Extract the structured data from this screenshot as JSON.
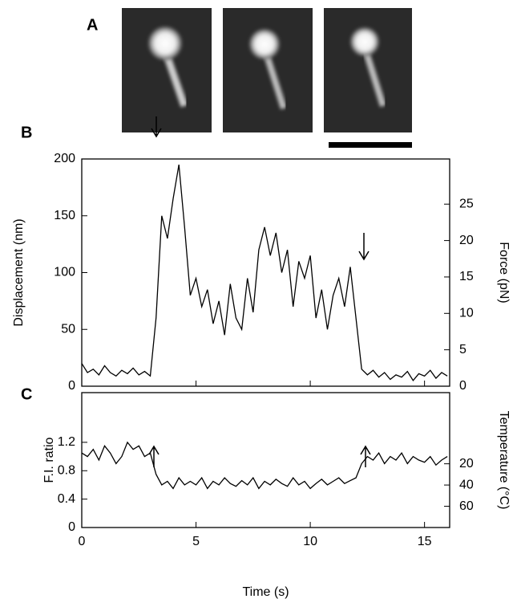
{
  "panel_labels": [
    "A",
    "B",
    "C"
  ],
  "chart_data": [
    {
      "type": "line",
      "ylabel": "Displacement (nm)",
      "y2label": "Force (pN)",
      "x": [
        0,
        0.25,
        0.5,
        0.75,
        1,
        1.25,
        1.5,
        1.75,
        2,
        2.25,
        2.5,
        2.75,
        3,
        3.25,
        3.5,
        3.75,
        4,
        4.25,
        4.5,
        4.75,
        5,
        5.25,
        5.5,
        5.75,
        6,
        6.25,
        6.5,
        6.75,
        7,
        7.25,
        7.5,
        7.75,
        8,
        8.25,
        8.5,
        8.75,
        9,
        9.25,
        9.5,
        9.75,
        10,
        10.25,
        10.5,
        10.75,
        11,
        11.25,
        11.5,
        11.75,
        12,
        12.25,
        12.5,
        12.75,
        13,
        13.25,
        13.5,
        13.75,
        14,
        14.25,
        14.5,
        14.75,
        15,
        15.25,
        15.5,
        15.75,
        16
      ],
      "series": [
        {
          "color": "#000000",
          "values": [
            20,
            12,
            15,
            10,
            18,
            12,
            9,
            14,
            11,
            16,
            10,
            13,
            9,
            60,
            150,
            130,
            165,
            195,
            140,
            80,
            95,
            70,
            85,
            55,
            75,
            45,
            90,
            60,
            50,
            95,
            65,
            120,
            140,
            115,
            135,
            100,
            120,
            70,
            110,
            95,
            115,
            60,
            85,
            50,
            80,
            95,
            70,
            105,
            60,
            15,
            10,
            14,
            8,
            12,
            6,
            10,
            8,
            13,
            5,
            11,
            9,
            14,
            7,
            12,
            9
          ]
        }
      ],
      "xlim": [
        0,
        16.1
      ],
      "xticks": [
        0,
        5,
        10,
        15
      ],
      "ylim": [
        0,
        200
      ],
      "yticks": [
        0,
        50,
        100,
        150,
        200
      ],
      "y2lim": [
        0,
        31.2
      ],
      "y2ticks": [
        0,
        5,
        10,
        15,
        20,
        25
      ]
    },
    {
      "type": "line",
      "ylabel": "F.I. ratio",
      "y2label": "Temperature (°C)",
      "xlabel": "Time (s)",
      "x": [
        0,
        0.25,
        0.5,
        0.75,
        1,
        1.25,
        1.5,
        1.75,
        2,
        2.25,
        2.5,
        2.75,
        3,
        3.25,
        3.5,
        3.75,
        4,
        4.25,
        4.5,
        4.75,
        5,
        5.25,
        5.5,
        5.75,
        6,
        6.25,
        6.5,
        6.75,
        7,
        7.25,
        7.5,
        7.75,
        8,
        8.25,
        8.5,
        8.75,
        9,
        9.25,
        9.5,
        9.75,
        10,
        10.25,
        10.5,
        10.75,
        11,
        11.25,
        11.5,
        11.75,
        12,
        12.25,
        12.5,
        12.75,
        13,
        13.25,
        13.5,
        13.75,
        14,
        14.25,
        14.5,
        14.75,
        15,
        15.25,
        15.5,
        15.75,
        16
      ],
      "series": [
        {
          "color": "#000000",
          "values": [
            1.05,
            1.0,
            1.1,
            0.95,
            1.15,
            1.05,
            0.9,
            1.0,
            1.2,
            1.1,
            1.15,
            1.0,
            1.05,
            0.75,
            0.6,
            0.65,
            0.55,
            0.7,
            0.6,
            0.65,
            0.6,
            0.7,
            0.55,
            0.65,
            0.6,
            0.7,
            0.62,
            0.58,
            0.66,
            0.6,
            0.7,
            0.55,
            0.65,
            0.6,
            0.68,
            0.62,
            0.58,
            0.7,
            0.6,
            0.65,
            0.55,
            0.62,
            0.68,
            0.6,
            0.65,
            0.7,
            0.62,
            0.66,
            0.7,
            0.9,
            1.0,
            0.95,
            1.05,
            0.9,
            1.0,
            0.95,
            1.05,
            0.9,
            1.0,
            0.95,
            0.92,
            1.0,
            0.88,
            0.95,
            1.0
          ]
        }
      ],
      "xlim": [
        0,
        16.1
      ],
      "xticks": [
        0,
        5,
        10,
        15
      ],
      "ylim": [
        0,
        1.9
      ],
      "yticks": [
        0,
        0.4,
        0.8,
        1.2
      ],
      "y2lim": [
        80,
        -47
      ],
      "y2ticks": [
        20,
        40,
        60
      ]
    }
  ]
}
